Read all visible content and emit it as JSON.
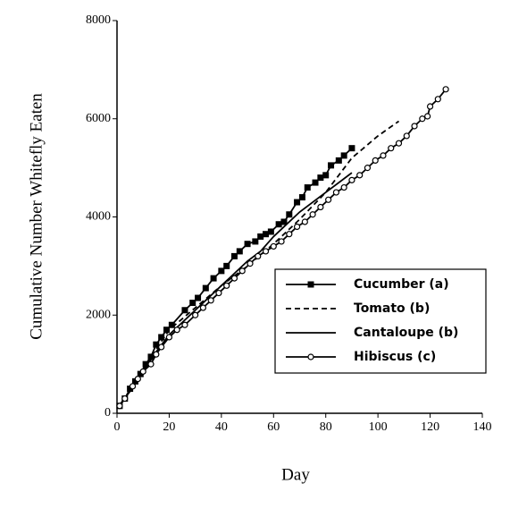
{
  "chart_data": {
    "type": "line",
    "x_label": "Day",
    "y_label": "Cumulative Number Whitefly Eaten",
    "xlim": [
      0,
      140
    ],
    "xticks": [
      0,
      20,
      40,
      60,
      80,
      100,
      120,
      140
    ],
    "ylim": [
      0,
      8000
    ],
    "yticks": [
      0,
      2000,
      4000,
      6000,
      8000
    ],
    "legend": "lower right",
    "series": [
      {
        "name": "Cucumber (a)",
        "color": "#000000",
        "marker": "square",
        "dash": false,
        "x": [
          1,
          3,
          5,
          7,
          9,
          11,
          13,
          15,
          17,
          19,
          21,
          26,
          29,
          31,
          34,
          37,
          40,
          42,
          45,
          47,
          50,
          53,
          55,
          57,
          59,
          62,
          64,
          66,
          69,
          71,
          73,
          76,
          78,
          80,
          82,
          85,
          87,
          90
        ],
        "values": [
          150,
          300,
          500,
          650,
          800,
          1000,
          1150,
          1400,
          1550,
          1700,
          1800,
          2100,
          2250,
          2350,
          2550,
          2750,
          2900,
          3000,
          3200,
          3300,
          3450,
          3500,
          3600,
          3650,
          3700,
          3850,
          3900,
          4050,
          4300,
          4400,
          4600,
          4700,
          4800,
          4850,
          5050,
          5150,
          5250,
          5400
        ]
      },
      {
        "name": "Tomato (b)",
        "color": "#000000",
        "marker": "none",
        "dash": true,
        "x": [
          0,
          5,
          10,
          15,
          20,
          30,
          40,
          50,
          60,
          70,
          80,
          90,
          100,
          108
        ],
        "values": [
          100,
          450,
          900,
          1300,
          1700,
          2150,
          2600,
          3000,
          3450,
          3950,
          4500,
          5200,
          5650,
          5950
        ]
      },
      {
        "name": "Cantaloupe (b)",
        "color": "#000000",
        "marker": "none",
        "dash": false,
        "x": [
          0,
          5,
          10,
          15,
          20,
          30,
          40,
          50,
          55,
          60,
          70,
          80,
          90
        ],
        "values": [
          100,
          450,
          850,
          1250,
          1600,
          2100,
          2600,
          3100,
          3300,
          3600,
          4100,
          4500,
          4900
        ]
      },
      {
        "name": "Hibiscus (c)",
        "color": "#000000",
        "marker": "circle",
        "dash": false,
        "x": [
          1,
          3,
          6,
          8,
          10,
          13,
          15,
          17,
          20,
          23,
          26,
          30,
          33,
          36,
          39,
          42,
          45,
          48,
          51,
          54,
          57,
          60,
          63,
          66,
          69,
          72,
          75,
          78,
          81,
          84,
          87,
          90,
          93,
          96,
          99,
          102,
          105,
          108,
          111,
          114,
          117,
          119,
          120,
          123,
          126
        ],
        "values": [
          150,
          300,
          550,
          700,
          850,
          1000,
          1200,
          1350,
          1550,
          1700,
          1800,
          2000,
          2150,
          2300,
          2450,
          2600,
          2750,
          2900,
          3050,
          3200,
          3300,
          3400,
          3500,
          3650,
          3800,
          3900,
          4050,
          4200,
          4350,
          4500,
          4600,
          4750,
          4850,
          5000,
          5150,
          5250,
          5400,
          5500,
          5650,
          5850,
          6000,
          6050,
          6250,
          6400,
          6600
        ]
      }
    ]
  }
}
